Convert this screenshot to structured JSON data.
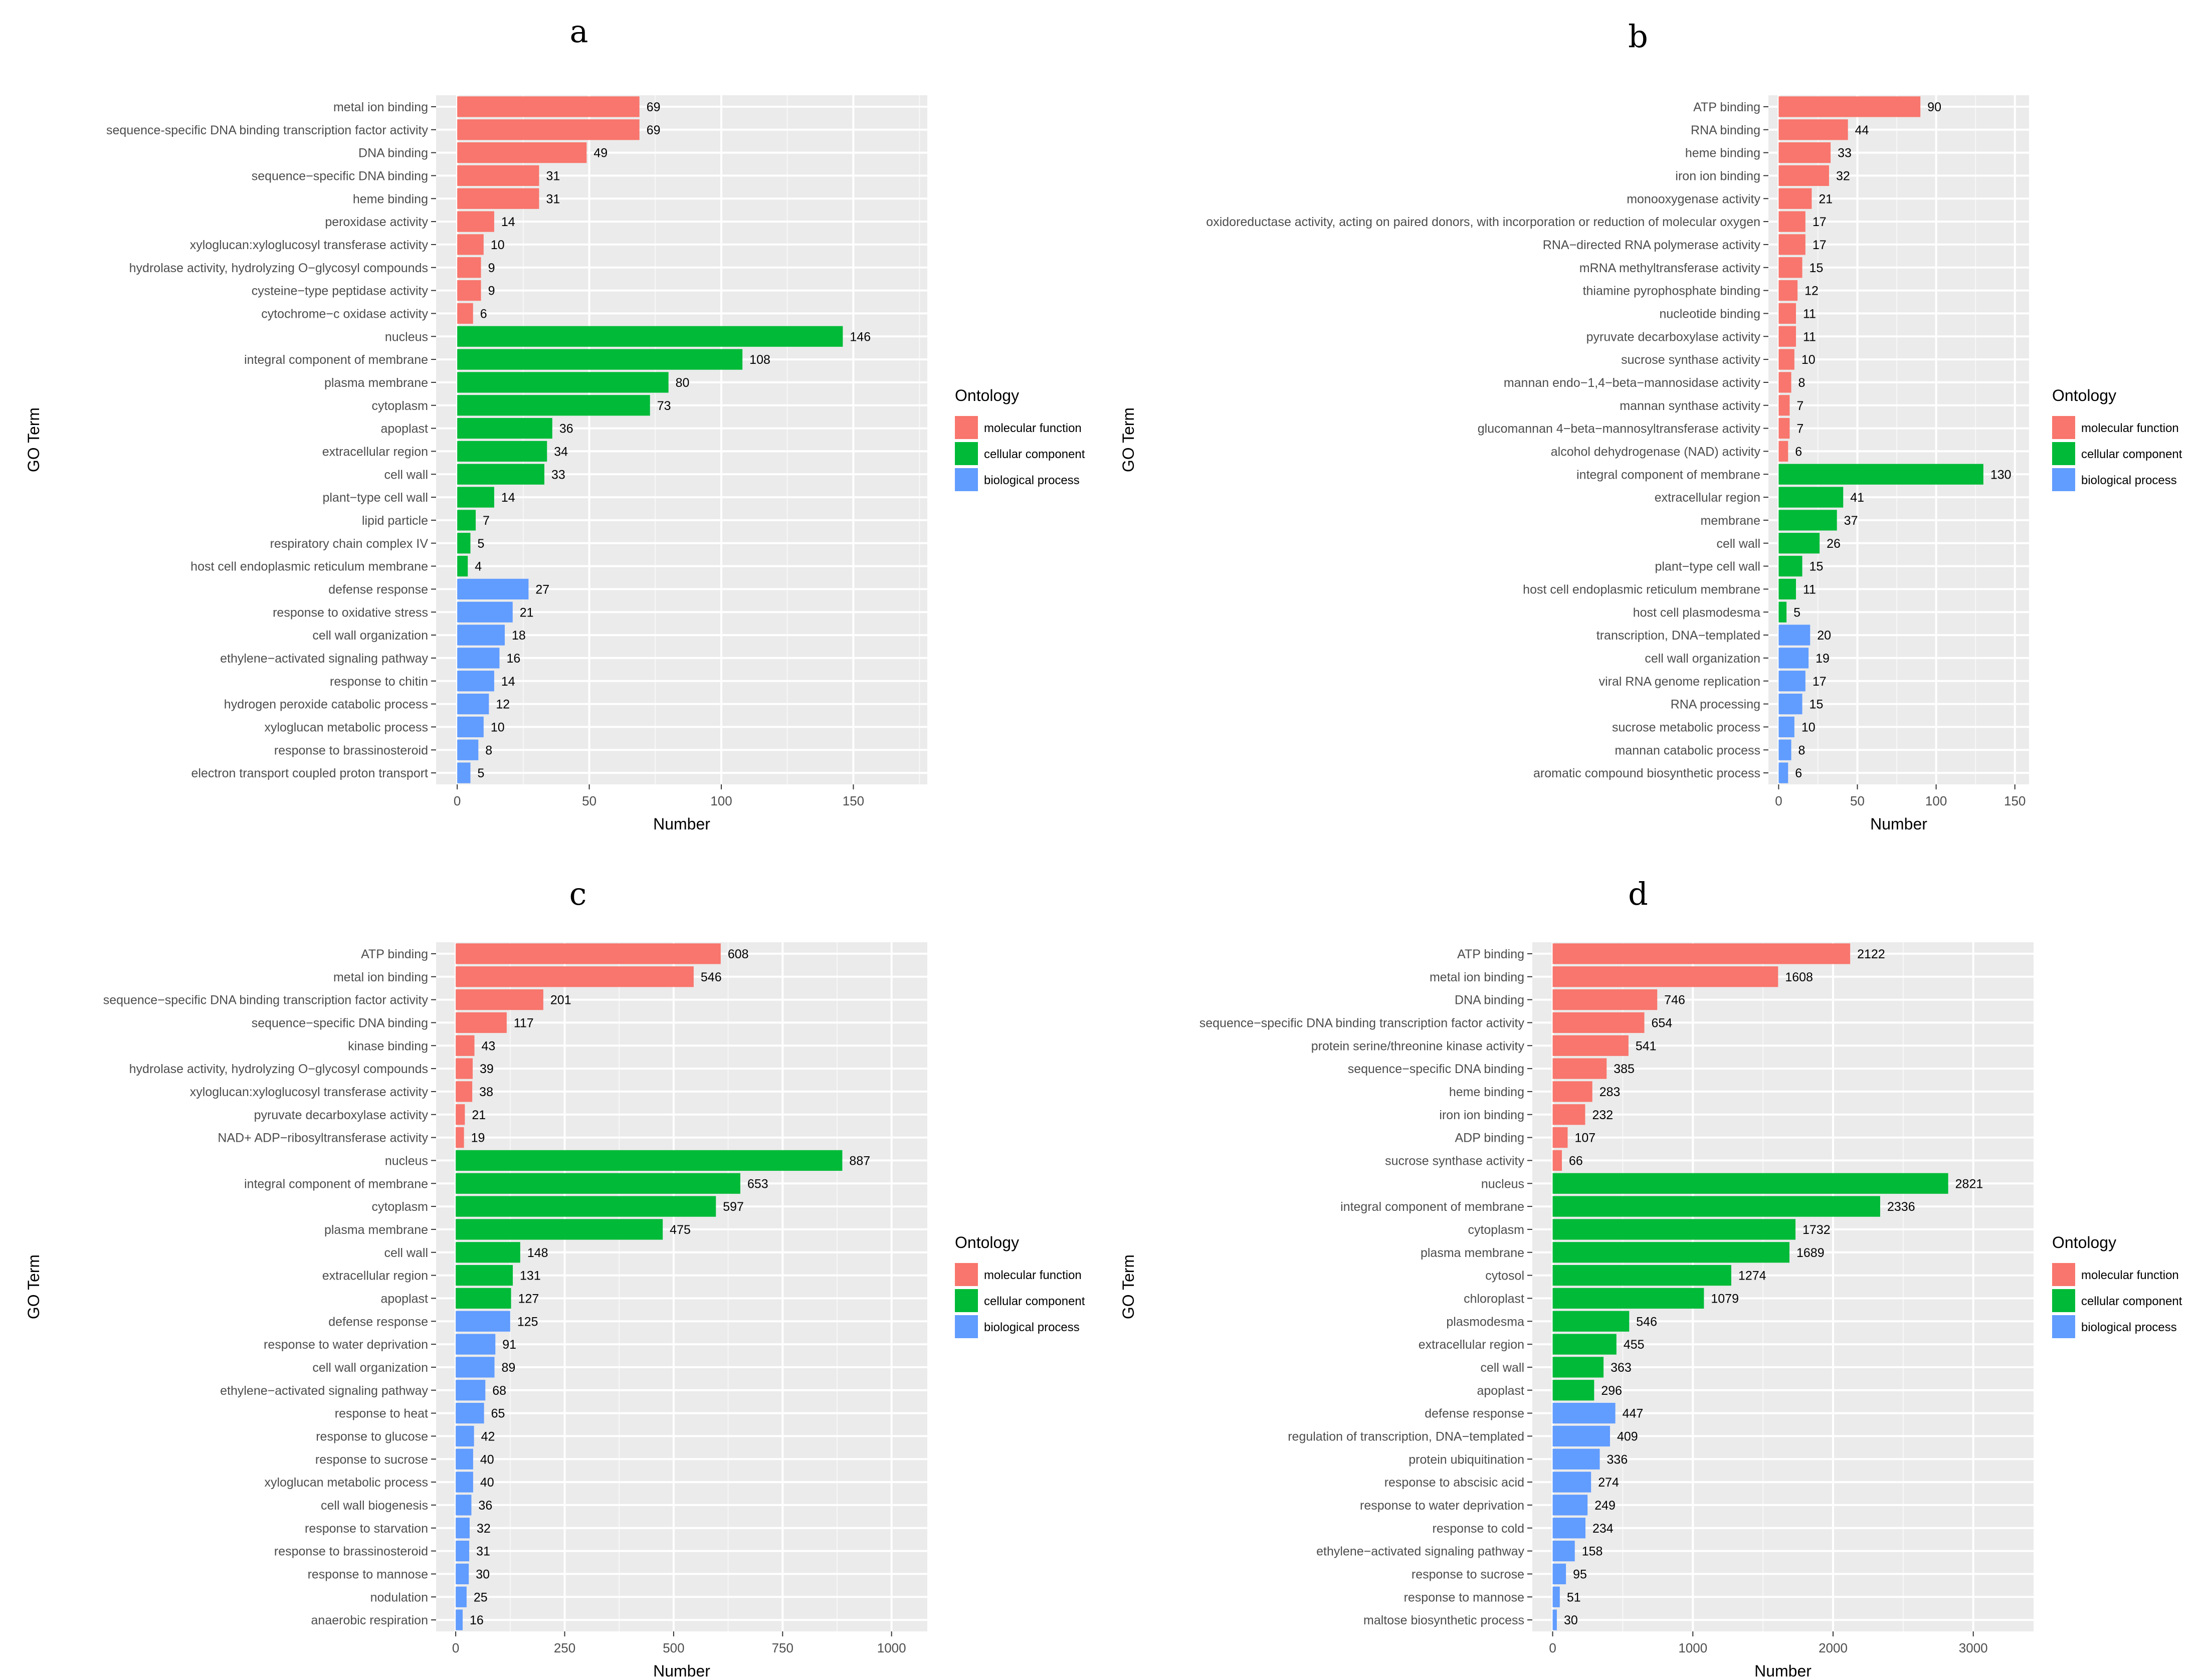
{
  "colors": {
    "molecular function": "#F8766D",
    "cellular component": "#00BA38",
    "biological process": "#619CFF",
    "panel_background": "#EBEBEB",
    "gridline": "#FFFFFF"
  },
  "chart_data": [
    {
      "type": "bar",
      "orientation": "horizontal",
      "panel": "a",
      "xlabel": "Number",
      "ylabel": "GO Term",
      "xlim": [
        -8,
        178
      ],
      "xticks": [
        0,
        50,
        100,
        150
      ],
      "grid": true,
      "legend": {
        "title": "Ontology",
        "placement": "right",
        "entries": [
          "molecular function",
          "cellular component",
          "biological process"
        ]
      },
      "bars": [
        {
          "label": "metal ion binding",
          "value": 69,
          "ontology": "molecular function"
        },
        {
          "label": "sequence-specific DNA binding transcription factor activity",
          "value": 69,
          "ontology": "molecular function"
        },
        {
          "label": "DNA binding",
          "value": 49,
          "ontology": "molecular function"
        },
        {
          "label": "sequence−specific DNA binding",
          "value": 31,
          "ontology": "molecular function"
        },
        {
          "label": "heme binding",
          "value": 31,
          "ontology": "molecular function"
        },
        {
          "label": "peroxidase activity",
          "value": 14,
          "ontology": "molecular function"
        },
        {
          "label": "xyloglucan:xyloglucosyl transferase activity",
          "value": 10,
          "ontology": "molecular function"
        },
        {
          "label": "hydrolase activity, hydrolyzing O−glycosyl compounds",
          "value": 9,
          "ontology": "molecular function"
        },
        {
          "label": "cysteine−type peptidase activity",
          "value": 9,
          "ontology": "molecular function"
        },
        {
          "label": "cytochrome−c oxidase activity",
          "value": 6,
          "ontology": "molecular function"
        },
        {
          "label": "nucleus",
          "value": 146,
          "ontology": "cellular component"
        },
        {
          "label": "integral component of membrane",
          "value": 108,
          "ontology": "cellular component"
        },
        {
          "label": "plasma membrane",
          "value": 80,
          "ontology": "cellular component"
        },
        {
          "label": "cytoplasm",
          "value": 73,
          "ontology": "cellular component"
        },
        {
          "label": "apoplast",
          "value": 36,
          "ontology": "cellular component"
        },
        {
          "label": "extracellular region",
          "value": 34,
          "ontology": "cellular component"
        },
        {
          "label": "cell wall",
          "value": 33,
          "ontology": "cellular component"
        },
        {
          "label": "plant−type cell wall",
          "value": 14,
          "ontology": "cellular component"
        },
        {
          "label": "lipid particle",
          "value": 7,
          "ontology": "cellular component"
        },
        {
          "label": "respiratory chain complex IV",
          "value": 5,
          "ontology": "cellular component"
        },
        {
          "label": "host cell endoplasmic reticulum membrane",
          "value": 4,
          "ontology": "cellular component"
        },
        {
          "label": "defense response",
          "value": 27,
          "ontology": "biological process"
        },
        {
          "label": "response to oxidative stress",
          "value": 21,
          "ontology": "biological process"
        },
        {
          "label": "cell wall organization",
          "value": 18,
          "ontology": "biological process"
        },
        {
          "label": "ethylene−activated signaling pathway",
          "value": 16,
          "ontology": "biological process"
        },
        {
          "label": "response to chitin",
          "value": 14,
          "ontology": "biological process"
        },
        {
          "label": "hydrogen peroxide catabolic process",
          "value": 12,
          "ontology": "biological process"
        },
        {
          "label": "xyloglucan metabolic process",
          "value": 10,
          "ontology": "biological process"
        },
        {
          "label": "response to brassinosteroid",
          "value": 8,
          "ontology": "biological process"
        },
        {
          "label": "electron transport coupled proton transport",
          "value": 5,
          "ontology": "biological process"
        }
      ]
    },
    {
      "type": "bar",
      "orientation": "horizontal",
      "panel": "b",
      "xlabel": "Number",
      "ylabel": "GO Term",
      "xlim": [
        -6.5,
        159
      ],
      "xticks": [
        0,
        50,
        100,
        150
      ],
      "grid": true,
      "legend": {
        "title": "Ontology",
        "placement": "right",
        "entries": [
          "molecular function",
          "cellular component",
          "biological process"
        ]
      },
      "bars": [
        {
          "label": "ATP binding",
          "value": 90,
          "ontology": "molecular function"
        },
        {
          "label": "RNA binding",
          "value": 44,
          "ontology": "molecular function"
        },
        {
          "label": "heme binding",
          "value": 33,
          "ontology": "molecular function"
        },
        {
          "label": "iron ion binding",
          "value": 32,
          "ontology": "molecular function"
        },
        {
          "label": "monooxygenase activity",
          "value": 21,
          "ontology": "molecular function"
        },
        {
          "label": "oxidoreductase activity, acting on paired donors, with incorporation or reduction of molecular oxygen",
          "value": 17,
          "ontology": "molecular function"
        },
        {
          "label": "RNA−directed RNA polymerase activity",
          "value": 17,
          "ontology": "molecular function"
        },
        {
          "label": "mRNA methyltransferase activity",
          "value": 15,
          "ontology": "molecular function"
        },
        {
          "label": "thiamine pyrophosphate binding",
          "value": 12,
          "ontology": "molecular function"
        },
        {
          "label": "nucleotide binding",
          "value": 11,
          "ontology": "molecular function"
        },
        {
          "label": "pyruvate decarboxylase activity",
          "value": 11,
          "ontology": "molecular function"
        },
        {
          "label": "sucrose synthase activity",
          "value": 10,
          "ontology": "molecular function"
        },
        {
          "label": "mannan endo−1,4−beta−mannosidase activity",
          "value": 8,
          "ontology": "molecular function"
        },
        {
          "label": "mannan synthase activity",
          "value": 7,
          "ontology": "molecular function"
        },
        {
          "label": "glucomannan 4−beta−mannosyltransferase activity",
          "value": 7,
          "ontology": "molecular function"
        },
        {
          "label": "alcohol dehydrogenase (NAD) activity",
          "value": 6,
          "ontology": "molecular function"
        },
        {
          "label": "integral component of membrane",
          "value": 130,
          "ontology": "cellular component"
        },
        {
          "label": "extracellular region",
          "value": 41,
          "ontology": "cellular component"
        },
        {
          "label": "membrane",
          "value": 37,
          "ontology": "cellular component"
        },
        {
          "label": "cell wall",
          "value": 26,
          "ontology": "cellular component"
        },
        {
          "label": "plant−type cell wall",
          "value": 15,
          "ontology": "cellular component"
        },
        {
          "label": "host cell endoplasmic reticulum membrane",
          "value": 11,
          "ontology": "cellular component"
        },
        {
          "label": "host cell plasmodesma",
          "value": 5,
          "ontology": "cellular component"
        },
        {
          "label": "transcription, DNA−templated",
          "value": 20,
          "ontology": "biological process"
        },
        {
          "label": "cell wall organization",
          "value": 19,
          "ontology": "biological process"
        },
        {
          "label": "viral RNA genome replication",
          "value": 17,
          "ontology": "biological process"
        },
        {
          "label": "RNA processing",
          "value": 15,
          "ontology": "biological process"
        },
        {
          "label": "sucrose metabolic process",
          "value": 10,
          "ontology": "biological process"
        },
        {
          "label": "mannan catabolic process",
          "value": 8,
          "ontology": "biological process"
        },
        {
          "label": "aromatic compound biosynthetic process",
          "value": 6,
          "ontology": "biological process"
        }
      ]
    },
    {
      "type": "bar",
      "orientation": "horizontal",
      "panel": "c",
      "xlabel": "Number",
      "ylabel": "GO Term",
      "xlim": [
        -45,
        1082
      ],
      "xticks": [
        0,
        250,
        500,
        750,
        1000
      ],
      "grid": true,
      "legend": {
        "title": "Ontology",
        "placement": "right",
        "entries": [
          "molecular function",
          "cellular component",
          "biological process"
        ]
      },
      "bars": [
        {
          "label": "ATP binding",
          "value": 608,
          "ontology": "molecular function"
        },
        {
          "label": "metal ion binding",
          "value": 546,
          "ontology": "molecular function"
        },
        {
          "label": "sequence−specific DNA binding transcription factor activity",
          "value": 201,
          "ontology": "molecular function"
        },
        {
          "label": "sequence−specific DNA binding",
          "value": 117,
          "ontology": "molecular function"
        },
        {
          "label": "kinase binding",
          "value": 43,
          "ontology": "molecular function"
        },
        {
          "label": "hydrolase activity, hydrolyzing O−glycosyl compounds",
          "value": 39,
          "ontology": "molecular function"
        },
        {
          "label": "xyloglucan:xyloglucosyl transferase activity",
          "value": 38,
          "ontology": "molecular function"
        },
        {
          "label": "pyruvate decarboxylase activity",
          "value": 21,
          "ontology": "molecular function"
        },
        {
          "label": "NAD+ ADP−ribosyltransferase activity",
          "value": 19,
          "ontology": "molecular function"
        },
        {
          "label": "nucleus",
          "value": 887,
          "ontology": "cellular component"
        },
        {
          "label": "integral component of membrane",
          "value": 653,
          "ontology": "cellular component"
        },
        {
          "label": "cytoplasm",
          "value": 597,
          "ontology": "cellular component"
        },
        {
          "label": "plasma membrane",
          "value": 475,
          "ontology": "cellular component"
        },
        {
          "label": "cell wall",
          "value": 148,
          "ontology": "cellular component"
        },
        {
          "label": "extracellular region",
          "value": 131,
          "ontology": "cellular component"
        },
        {
          "label": "apoplast",
          "value": 127,
          "ontology": "cellular component"
        },
        {
          "label": "defense response",
          "value": 125,
          "ontology": "biological process"
        },
        {
          "label": "response to water deprivation",
          "value": 91,
          "ontology": "biological process"
        },
        {
          "label": "cell wall organization",
          "value": 89,
          "ontology": "biological process"
        },
        {
          "label": "ethylene−activated signaling pathway",
          "value": 68,
          "ontology": "biological process"
        },
        {
          "label": "response to heat",
          "value": 65,
          "ontology": "biological process"
        },
        {
          "label": "response to glucose",
          "value": 42,
          "ontology": "biological process"
        },
        {
          "label": "response to sucrose",
          "value": 40,
          "ontology": "biological process"
        },
        {
          "label": "xyloglucan metabolic process",
          "value": 40,
          "ontology": "biological process"
        },
        {
          "label": "cell wall biogenesis",
          "value": 36,
          "ontology": "biological process"
        },
        {
          "label": "response to starvation",
          "value": 32,
          "ontology": "biological process"
        },
        {
          "label": "response to brassinosteroid",
          "value": 31,
          "ontology": "biological process"
        },
        {
          "label": "response to mannose",
          "value": 30,
          "ontology": "biological process"
        },
        {
          "label": "nodulation",
          "value": 25,
          "ontology": "biological process"
        },
        {
          "label": "anaerobic respiration",
          "value": 16,
          "ontology": "biological process"
        }
      ]
    },
    {
      "type": "bar",
      "orientation": "horizontal",
      "panel": "d",
      "xlabel": "Number",
      "ylabel": "GO Term",
      "xlim": [
        -145,
        3430
      ],
      "xticks": [
        0,
        1000,
        2000,
        3000
      ],
      "grid": true,
      "legend": {
        "title": "Ontology",
        "placement": "right",
        "entries": [
          "molecular function",
          "cellular component",
          "biological process"
        ]
      },
      "bars": [
        {
          "label": "ATP binding",
          "value": 2122,
          "ontology": "molecular function"
        },
        {
          "label": "metal ion binding",
          "value": 1608,
          "ontology": "molecular function"
        },
        {
          "label": "DNA binding",
          "value": 746,
          "ontology": "molecular function"
        },
        {
          "label": "sequence−specific DNA binding transcription factor activity",
          "value": 654,
          "ontology": "molecular function"
        },
        {
          "label": "protein serine/threonine kinase activity",
          "value": 541,
          "ontology": "molecular function"
        },
        {
          "label": "sequence−specific DNA binding",
          "value": 385,
          "ontology": "molecular function"
        },
        {
          "label": "heme binding",
          "value": 283,
          "ontology": "molecular function"
        },
        {
          "label": "iron ion binding",
          "value": 232,
          "ontology": "molecular function"
        },
        {
          "label": "ADP binding",
          "value": 107,
          "ontology": "molecular function"
        },
        {
          "label": "sucrose synthase activity",
          "value": 66,
          "ontology": "molecular function"
        },
        {
          "label": "nucleus",
          "value": 2821,
          "ontology": "cellular component"
        },
        {
          "label": "integral component of membrane",
          "value": 2336,
          "ontology": "cellular component"
        },
        {
          "label": "cytoplasm",
          "value": 1732,
          "ontology": "cellular component"
        },
        {
          "label": "plasma membrane",
          "value": 1689,
          "ontology": "cellular component"
        },
        {
          "label": "cytosol",
          "value": 1274,
          "ontology": "cellular component"
        },
        {
          "label": "chloroplast",
          "value": 1079,
          "ontology": "cellular component"
        },
        {
          "label": "plasmodesma",
          "value": 546,
          "ontology": "cellular component"
        },
        {
          "label": "extracellular region",
          "value": 455,
          "ontology": "cellular component"
        },
        {
          "label": "cell wall",
          "value": 363,
          "ontology": "cellular component"
        },
        {
          "label": "apoplast",
          "value": 296,
          "ontology": "cellular component"
        },
        {
          "label": "defense response",
          "value": 447,
          "ontology": "biological process"
        },
        {
          "label": "regulation of transcription, DNA−templated",
          "value": 409,
          "ontology": "biological process"
        },
        {
          "label": "protein ubiquitination",
          "value": 336,
          "ontology": "biological process"
        },
        {
          "label": "response to abscisic acid",
          "value": 274,
          "ontology": "biological process"
        },
        {
          "label": "response to water deprivation",
          "value": 249,
          "ontology": "biological process"
        },
        {
          "label": "response to cold",
          "value": 234,
          "ontology": "biological process"
        },
        {
          "label": "ethylene−activated signaling pathway",
          "value": 158,
          "ontology": "biological process"
        },
        {
          "label": "response to sucrose",
          "value": 95,
          "ontology": "biological process"
        },
        {
          "label": "response to mannose",
          "value": 51,
          "ontology": "biological process"
        },
        {
          "label": "maltose biosynthetic process",
          "value": 30,
          "ontology": "biological process"
        }
      ]
    }
  ]
}
